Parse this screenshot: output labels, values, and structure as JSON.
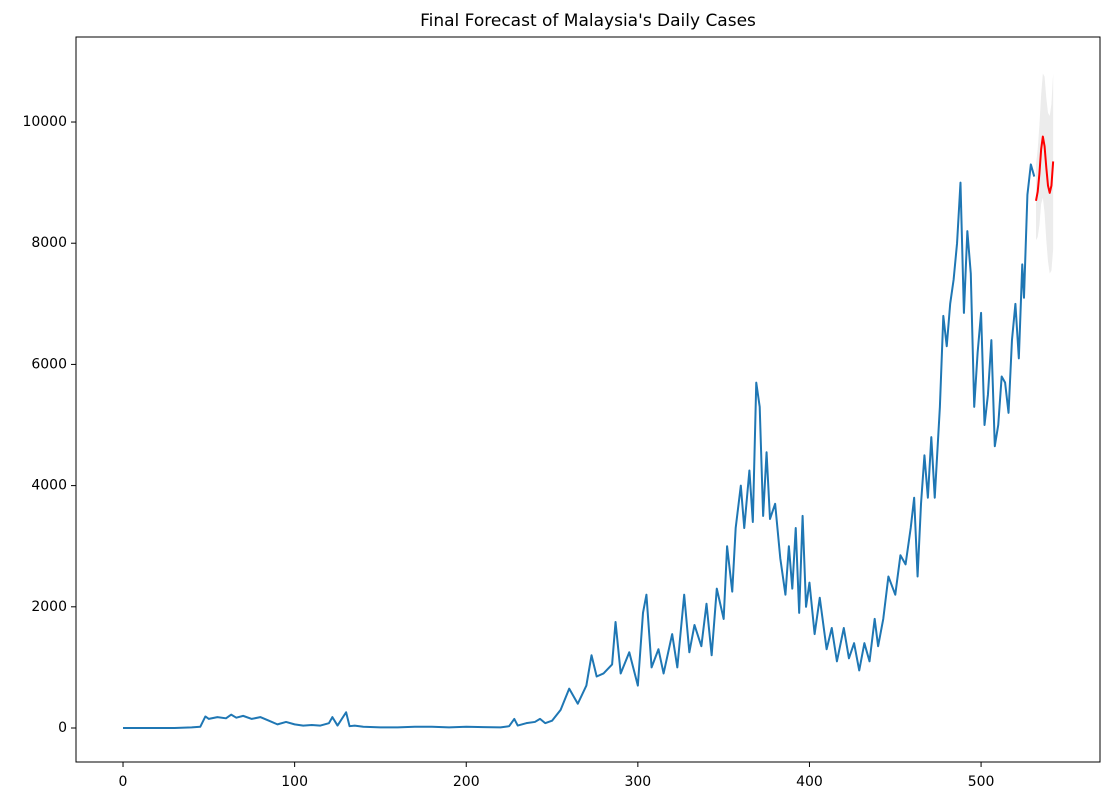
{
  "chart_data": {
    "type": "line",
    "title": "Final Forecast of Malaysia's Daily Cases",
    "xlim": [
      -27.4,
      569.3
    ],
    "ylim": [
      -561,
      11403
    ],
    "xticks": [
      0,
      100,
      200,
      300,
      400,
      500
    ],
    "yticks": [
      0,
      2000,
      4000,
      6000,
      8000,
      10000
    ],
    "grid": false,
    "series": [
      {
        "color": "#1f77b4",
        "x": [
          0,
          10,
          20,
          30,
          40,
          45,
          48,
          50,
          55,
          60,
          63,
          66,
          70,
          75,
          80,
          85,
          90,
          95,
          100,
          105,
          110,
          115,
          120,
          122,
          125,
          130,
          132,
          135,
          140,
          150,
          160,
          170,
          180,
          190,
          200,
          210,
          220,
          225,
          228,
          230,
          235,
          240,
          243,
          246,
          250,
          255,
          260,
          265,
          270,
          273,
          276,
          280,
          285,
          287,
          290,
          295,
          300,
          303,
          305,
          308,
          312,
          315,
          320,
          323,
          327,
          330,
          333,
          337,
          340,
          343,
          346,
          350,
          352,
          355,
          357,
          360,
          362,
          365,
          367,
          369,
          371,
          373,
          375,
          377,
          380,
          383,
          386,
          388,
          390,
          392,
          394,
          396,
          398,
          400,
          403,
          406,
          410,
          413,
          416,
          420,
          423,
          426,
          429,
          432,
          435,
          438,
          440,
          443,
          446,
          450,
          453,
          456,
          459,
          461,
          463,
          465,
          467,
          469,
          471,
          473,
          476,
          478,
          480,
          482,
          484,
          486,
          488,
          490,
          492,
          494,
          496,
          498,
          500,
          502,
          504,
          506,
          508,
          510,
          512,
          514,
          516,
          518,
          520,
          522,
          524,
          525,
          527,
          529,
          531
        ],
        "values": [
          0,
          0,
          0,
          0,
          10,
          20,
          190,
          150,
          180,
          160,
          220,
          170,
          200,
          150,
          180,
          120,
          60,
          100,
          60,
          40,
          50,
          40,
          80,
          180,
          40,
          260,
          30,
          40,
          20,
          10,
          10,
          20,
          20,
          10,
          20,
          15,
          10,
          30,
          150,
          40,
          80,
          100,
          150,
          80,
          120,
          300,
          650,
          400,
          700,
          1200,
          850,
          900,
          1050,
          1750,
          900,
          1250,
          700,
          1900,
          2200,
          1000,
          1300,
          900,
          1550,
          1000,
          2200,
          1250,
          1700,
          1350,
          2050,
          1200,
          2300,
          1800,
          3000,
          2250,
          3300,
          4000,
          3300,
          4250,
          3400,
          5700,
          5300,
          3500,
          4550,
          3450,
          3700,
          2800,
          2200,
          3000,
          2300,
          3300,
          1900,
          3500,
          2000,
          2400,
          1550,
          2150,
          1300,
          1650,
          1100,
          1650,
          1150,
          1400,
          950,
          1400,
          1100,
          1800,
          1350,
          1800,
          2500,
          2200,
          2850,
          2700,
          3300,
          3800,
          2500,
          3700,
          4500,
          3800,
          4800,
          3800,
          5300,
          6800,
          6300,
          7000,
          7400,
          8000,
          9000,
          6850,
          8200,
          7500,
          5300,
          6200,
          6850,
          5000,
          5500,
          6400,
          4650,
          5000,
          5800,
          5700,
          5200,
          6400,
          7000,
          6100,
          7650,
          7100,
          8800,
          9300,
          9100
        ]
      },
      {
        "color": "#ff0000",
        "band_color": "#ececec",
        "x": [
          532,
          533,
          534,
          535,
          536,
          537,
          538,
          539,
          540,
          541,
          542
        ],
        "values": [
          8700,
          8850,
          9150,
          9550,
          9760,
          9600,
          9250,
          8950,
          8830,
          8950,
          9350
        ],
        "lower": [
          8050,
          8100,
          8300,
          8650,
          8750,
          8500,
          8050,
          7700,
          7500,
          7550,
          7900
        ],
        "upper": [
          9300,
          9550,
          9950,
          10450,
          10800,
          10750,
          10400,
          10150,
          10100,
          10300,
          10800
        ]
      }
    ]
  }
}
